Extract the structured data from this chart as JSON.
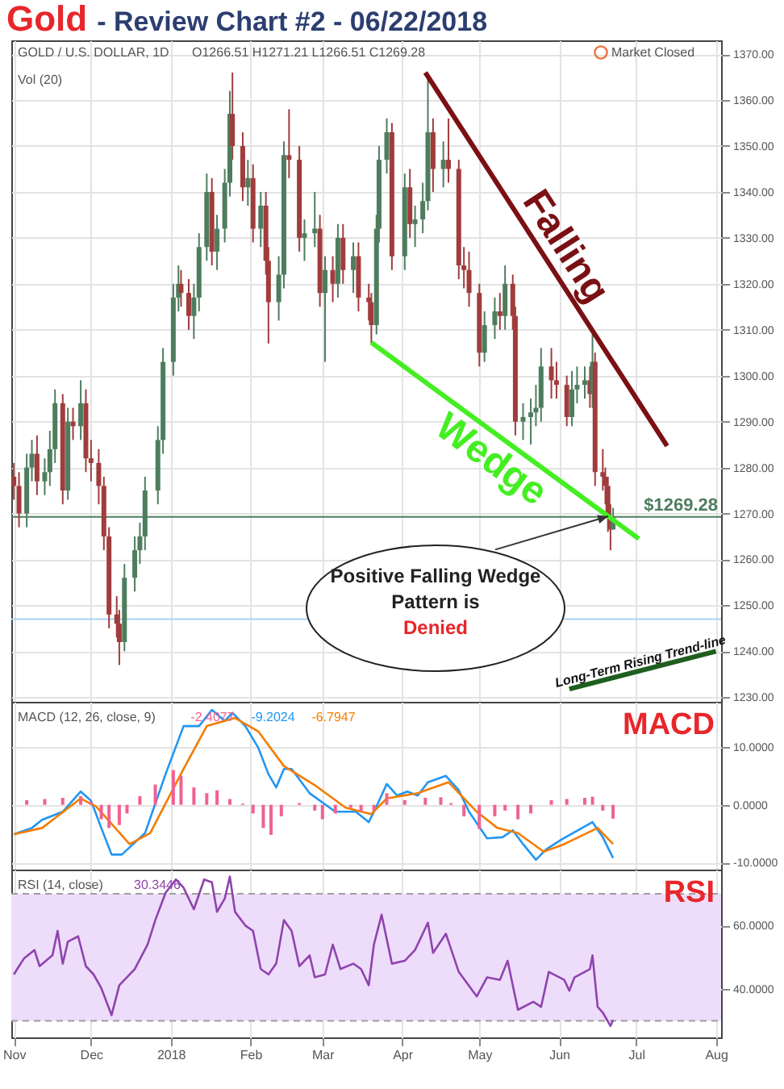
{
  "chart_data": [
    {
      "type": "candlestick",
      "title": "Gold",
      "subtitle": "- Review Chart #2 - 06/22/2018",
      "annotations": [
        "GOLD / U.S. DOLLAR, 1D",
        "O1266.51 H1271.21 L1266.51 C1269.28",
        "Vol (20)",
        "Market Closed",
        {
          "text": "Positive Falling Wedge Pattern is Denied",
          "x": "2018-06-22",
          "y": 1269.28
        }
      ],
      "x": [
        "2017-11-01",
        "2017-11-03",
        "2017-11-06",
        "2017-11-08",
        "2017-11-10",
        "2017-11-13",
        "2017-11-15",
        "2017-11-17",
        "2017-11-20",
        "2017-11-22",
        "2017-11-24",
        "2017-11-27",
        "2017-11-29",
        "2017-12-01",
        "2017-12-04",
        "2017-12-06",
        "2017-12-08",
        "2017-12-11",
        "2017-12-12",
        "2017-12-14",
        "2017-12-18",
        "2017-12-20",
        "2017-12-22",
        "2017-12-27",
        "2017-12-29",
        "2018-01-02",
        "2018-01-04",
        "2018-01-05",
        "2018-01-08",
        "2018-01-10",
        "2018-01-12",
        "2018-01-15",
        "2018-01-17",
        "2018-01-19",
        "2018-01-22",
        "2018-01-24",
        "2018-01-25",
        "2018-01-29",
        "2018-01-31",
        "2018-02-02",
        "2018-02-05",
        "2018-02-07",
        "2018-02-08",
        "2018-02-12",
        "2018-02-14",
        "2018-02-16",
        "2018-02-20",
        "2018-02-22",
        "2018-02-26",
        "2018-02-28",
        "2018-03-02",
        "2018-03-05",
        "2018-03-07",
        "2018-03-09",
        "2018-03-13",
        "2018-03-15",
        "2018-03-19",
        "2018-03-20",
        "2018-03-22",
        "2018-03-23",
        "2018-03-26",
        "2018-03-28",
        "2018-04-02",
        "2018-04-04",
        "2018-04-06",
        "2018-04-09",
        "2018-04-11",
        "2018-04-13",
        "2018-04-17",
        "2018-04-19",
        "2018-04-23",
        "2018-04-25",
        "2018-04-27",
        "2018-05-01",
        "2018-05-03",
        "2018-05-07",
        "2018-05-09",
        "2018-05-11",
        "2018-05-14",
        "2018-05-15",
        "2018-05-18",
        "2018-05-21",
        "2018-05-23",
        "2018-05-25",
        "2018-05-29",
        "2018-05-31",
        "2018-06-04",
        "2018-06-06",
        "2018-06-08",
        "2018-06-11",
        "2018-06-13",
        "2018-06-14",
        "2018-06-15",
        "2018-06-18",
        "2018-06-19",
        "2018-06-20",
        "2018-06-21",
        "2018-06-22"
      ],
      "ohlc": [
        [
          1278,
          1281,
          1273,
          1276
        ],
        [
          1276,
          1279,
          1267,
          1270
        ],
        [
          1270,
          1283,
          1267,
          1280
        ],
        [
          1280,
          1286,
          1277,
          1283
        ],
        [
          1283,
          1287,
          1274,
          1277
        ],
        [
          1277,
          1282,
          1274,
          1279
        ],
        [
          1279,
          1288,
          1276,
          1284
        ],
        [
          1284,
          1297,
          1281,
          1294
        ],
        [
          1294,
          1296,
          1272,
          1275
        ],
        [
          1275,
          1293,
          1273,
          1290
        ],
        [
          1290,
          1293,
          1286,
          1289
        ],
        [
          1289,
          1299,
          1286,
          1294
        ],
        [
          1294,
          1297,
          1279,
          1282
        ],
        [
          1282,
          1286,
          1277,
          1281
        ],
        [
          1281,
          1284,
          1272,
          1276
        ],
        [
          1276,
          1278,
          1262,
          1265
        ],
        [
          1265,
          1267,
          1245,
          1248
        ],
        [
          1248,
          1252,
          1243,
          1246
        ],
        [
          1246,
          1249,
          1237,
          1242
        ],
        [
          1242,
          1259,
          1240,
          1256
        ],
        [
          1256,
          1265,
          1253,
          1262
        ],
        [
          1262,
          1268,
          1259,
          1265
        ],
        [
          1265,
          1278,
          1262,
          1275
        ],
        [
          1275,
          1289,
          1272,
          1286
        ],
        [
          1286,
          1306,
          1283,
          1303
        ],
        [
          1303,
          1320,
          1300,
          1317
        ],
        [
          1317,
          1324,
          1314,
          1320
        ],
        [
          1320,
          1323,
          1315,
          1318
        ],
        [
          1318,
          1321,
          1310,
          1313
        ],
        [
          1313,
          1320,
          1308,
          1317
        ],
        [
          1317,
          1331,
          1314,
          1328
        ],
        [
          1328,
          1344,
          1325,
          1340
        ],
        [
          1340,
          1343,
          1324,
          1327
        ],
        [
          1327,
          1335,
          1323,
          1332
        ],
        [
          1332,
          1345,
          1329,
          1342
        ],
        [
          1342,
          1362,
          1339,
          1357
        ],
        [
          1357,
          1366,
          1347,
          1350
        ],
        [
          1350,
          1353,
          1338,
          1341
        ],
        [
          1341,
          1347,
          1337,
          1343
        ],
        [
          1343,
          1346,
          1329,
          1332
        ],
        [
          1332,
          1340,
          1328,
          1337
        ],
        [
          1337,
          1340,
          1322,
          1325
        ],
        [
          1325,
          1328,
          1307,
          1316
        ],
        [
          1316,
          1326,
          1312,
          1322
        ],
        [
          1322,
          1351,
          1319,
          1348
        ],
        [
          1348,
          1358,
          1343,
          1347
        ],
        [
          1347,
          1350,
          1327,
          1330
        ],
        [
          1330,
          1334,
          1325,
          1331
        ],
        [
          1331,
          1340,
          1328,
          1332
        ],
        [
          1332,
          1335,
          1315,
          1318
        ],
        [
          1318,
          1326,
          1303,
          1323
        ],
        [
          1323,
          1326,
          1316,
          1320
        ],
        [
          1320,
          1333,
          1317,
          1330
        ],
        [
          1330,
          1333,
          1320,
          1323
        ],
        [
          1323,
          1329,
          1318,
          1326
        ],
        [
          1326,
          1329,
          1314,
          1317
        ],
        [
          1317,
          1320,
          1312,
          1316
        ],
        [
          1316,
          1318,
          1307,
          1311
        ],
        [
          1311,
          1335,
          1309,
          1332
        ],
        [
          1332,
          1350,
          1329,
          1347
        ],
        [
          1347,
          1356,
          1344,
          1353
        ],
        [
          1353,
          1355,
          1323,
          1326
        ],
        [
          1326,
          1344,
          1323,
          1341
        ],
        [
          1341,
          1345,
          1330,
          1333
        ],
        [
          1333,
          1337,
          1328,
          1334
        ],
        [
          1334,
          1342,
          1331,
          1338
        ],
        [
          1338,
          1365,
          1336,
          1353
        ],
        [
          1353,
          1356,
          1340,
          1345
        ],
        [
          1345,
          1351,
          1341,
          1347
        ],
        [
          1347,
          1356,
          1342,
          1345
        ],
        [
          1345,
          1347,
          1321,
          1324
        ],
        [
          1324,
          1328,
          1319,
          1323
        ],
        [
          1323,
          1327,
          1315,
          1318
        ],
        [
          1318,
          1320,
          1302,
          1305
        ],
        [
          1305,
          1314,
          1303,
          1311
        ],
        [
          1311,
          1317,
          1308,
          1314
        ],
        [
          1314,
          1318,
          1310,
          1313
        ],
        [
          1313,
          1324,
          1310,
          1320
        ],
        [
          1320,
          1322,
          1310,
          1313
        ],
        [
          1313,
          1315,
          1287,
          1290
        ],
        [
          1290,
          1294,
          1286,
          1291
        ],
        [
          1291,
          1295,
          1285,
          1292
        ],
        [
          1292,
          1298,
          1289,
          1293
        ],
        [
          1293,
          1306,
          1290,
          1302
        ],
        [
          1302,
          1306,
          1295,
          1299
        ],
        [
          1299,
          1303,
          1295,
          1298
        ],
        [
          1298,
          1300,
          1289,
          1291
        ],
        [
          1291,
          1301,
          1289,
          1297
        ],
        [
          1297,
          1302,
          1294,
          1298
        ],
        [
          1298,
          1302,
          1295,
          1299
        ],
        [
          1299,
          1302,
          1293,
          1296
        ],
        [
          1296,
          1309,
          1293,
          1303
        ],
        [
          1303,
          1305,
          1276,
          1279
        ],
        [
          1279,
          1284,
          1275,
          1278
        ],
        [
          1278,
          1280,
          1272,
          1276
        ],
        [
          1276,
          1278,
          1266,
          1269
        ],
        [
          1269,
          1272,
          1262,
          1266.51
        ],
        [
          1266.51,
          1271.21,
          1266.51,
          1269.28
        ]
      ],
      "colors": [
        "#a13c3c",
        "#a13c3c",
        "#4e7d5e",
        "#4e7d5e",
        "#a13c3c",
        "#4e7d5e",
        "#4e7d5e",
        "#4e7d5e",
        "#a13c3c",
        "#4e7d5e",
        "#a13c3c",
        "#4e7d5e",
        "#a13c3c",
        "#a13c3c",
        "#a13c3c",
        "#a13c3c",
        "#a13c3c",
        "#a13c3c",
        "#a13c3c",
        "#4e7d5e",
        "#4e7d5e",
        "#4e7d5e",
        "#4e7d5e",
        "#4e7d5e",
        "#4e7d5e",
        "#4e7d5e",
        "#4e7d5e",
        "#a13c3c",
        "#a13c3c",
        "#4e7d5e",
        "#4e7d5e",
        "#4e7d5e",
        "#a13c3c",
        "#4e7d5e",
        "#4e7d5e",
        "#4e7d5e",
        "#a13c3c",
        "#a13c3c",
        "#4e7d5e",
        "#a13c3c",
        "#4e7d5e",
        "#a13c3c",
        "#a13c3c",
        "#4e7d5e",
        "#4e7d5e",
        "#a13c3c",
        "#a13c3c",
        "#4e7d5e",
        "#4e7d5e",
        "#a13c3c",
        "#4e7d5e",
        "#a13c3c",
        "#4e7d5e",
        "#a13c3c",
        "#4e7d5e",
        "#a13c3c",
        "#a13c3c",
        "#a13c3c",
        "#4e7d5e",
        "#4e7d5e",
        "#4e7d5e",
        "#a13c3c",
        "#4e7d5e",
        "#a13c3c",
        "#4e7d5e",
        "#4e7d5e",
        "#4e7d5e",
        "#a13c3c",
        "#4e7d5e",
        "#a13c3c",
        "#a13c3c",
        "#a13c3c",
        "#a13c3c",
        "#a13c3c",
        "#4e7d5e",
        "#4e7d5e",
        "#a13c3c",
        "#4e7d5e",
        "#a13c3c",
        "#a13c3c",
        "#4e7d5e",
        "#4e7d5e",
        "#4e7d5e",
        "#4e7d5e",
        "#a13c3c",
        "#a13c3c",
        "#a13c3c",
        "#4e7d5e",
        "#4e7d5e",
        "#4e7d5e",
        "#a13c3c",
        "#4e7d5e",
        "#a13c3c",
        "#a13c3c",
        "#a13c3c",
        "#a13c3c",
        "#a13c3c",
        "#4e7d5e"
      ],
      "series": [
        {
          "type": "line",
          "name": "Falling",
          "color": "#7b1014",
          "x": [
            "2018-04-10",
            "2018-07-13"
          ],
          "values": [
            1366,
            1284.7
          ]
        },
        {
          "type": "line",
          "name": "Wedge",
          "color": "#44ee22",
          "x": [
            "2018-03-20",
            "2018-07-02"
          ],
          "values": [
            1307.2,
            1264.5
          ]
        },
        {
          "type": "line",
          "name": "Long-Term Rising Trend-line",
          "color": "#1e5e1e",
          "x": [
            "2018-06-05",
            "2018-08-01"
          ],
          "values": [
            1231.8,
            1240
          ]
        }
      ],
      "ref_lines": [
        {
          "axis": "y",
          "value": 1269.28,
          "label": "$1269.28",
          "color": "#4e7d5e"
        },
        {
          "axis": "y",
          "value": 1247,
          "color": "#a8d4f0"
        }
      ],
      "xlim": [
        "2017-10-31",
        "2018-08-03"
      ],
      "xticks": [
        {
          "value": "2017-11-01",
          "label": null
        },
        {
          "value": "2017-12-01",
          "label": null
        },
        {
          "value": "2018-01-01",
          "label": null
        },
        {
          "value": "2018-02-01",
          "label": null
        },
        {
          "value": "2018-03-01",
          "label": null
        },
        {
          "value": "2018-04-01",
          "label": null
        },
        {
          "value": "2018-05-01",
          "label": null
        },
        {
          "value": "2018-06-01",
          "label": null
        },
        {
          "value": "2018-07-01",
          "label": null
        },
        {
          "value": "2018-08-01",
          "label": null
        }
      ],
      "ylim": [
        1229,
        1373
      ],
      "yticks": [
        {
          "value": 1230,
          "label": "1230.00"
        },
        {
          "value": 1240,
          "label": "1240.00"
        },
        {
          "value": 1250,
          "label": "1250.00"
        },
        {
          "value": 1260,
          "label": "1260.00"
        },
        {
          "value": 1270,
          "label": "1270.00"
        },
        {
          "value": 1280,
          "label": "1280.00"
        },
        {
          "value": 1290,
          "label": "1290.00"
        },
        {
          "value": 1300,
          "label": "1300.00"
        },
        {
          "value": 1310,
          "label": "1310.00"
        },
        {
          "value": 1320,
          "label": "1320.00"
        },
        {
          "value": 1330,
          "label": "1330.00"
        },
        {
          "value": 1340,
          "label": "1340.00"
        },
        {
          "value": 1350,
          "label": "1350.00"
        },
        {
          "value": 1360,
          "label": "1360.00"
        },
        {
          "value": 1370,
          "label": "1370.00"
        }
      ],
      "grid": true,
      "tick_labels": "y"
    },
    {
      "type": "line",
      "annotations": [
        "MACD (12, 26, close, 9)",
        "-2.4077",
        "-9.2024",
        "-6.7947",
        "MACD"
      ],
      "series": [
        {
          "type": "line",
          "color": "#2196f3",
          "x": [
            "2017-11-01",
            "2017-11-08",
            "2017-11-12",
            "2017-11-20",
            "2017-11-27",
            "2017-12-01",
            "2017-12-05",
            "2017-12-09",
            "2017-12-13",
            "2017-12-22",
            "2017-12-30",
            "2018-01-06",
            "2018-01-12",
            "2018-01-17",
            "2018-01-22",
            "2018-01-25",
            "2018-01-30",
            "2018-02-04",
            "2018-02-08",
            "2018-02-11",
            "2018-02-14",
            "2018-02-17",
            "2018-02-24",
            "2018-03-06",
            "2018-03-14",
            "2018-03-19",
            "2018-03-22",
            "2018-03-26",
            "2018-03-30",
            "2018-04-03",
            "2018-04-07",
            "2018-04-11",
            "2018-04-18",
            "2018-04-23",
            "2018-04-27",
            "2018-05-04",
            "2018-05-10",
            "2018-05-14",
            "2018-05-18",
            "2018-05-23",
            "2018-05-27",
            "2018-06-02",
            "2018-06-14",
            "2018-06-18",
            "2018-06-22"
          ],
          "values": [
            -5.1,
            -4.0,
            -2.6,
            -1.2,
            2.3,
            0.7,
            -4.0,
            -8.6,
            -8.6,
            -4.9,
            5.3,
            13.6,
            13.6,
            16.4,
            14.5,
            15.9,
            13.6,
            9.9,
            5.3,
            3.0,
            6.2,
            6.2,
            2.0,
            -1.2,
            -1.2,
            -3.0,
            -0.3,
            3.6,
            1.6,
            2.3,
            1.6,
            3.9,
            5.0,
            2.5,
            -1.2,
            -5.8,
            -5.6,
            -4.4,
            -6.8,
            -9.5,
            -7.7,
            -6.0,
            -3.0,
            -5.6,
            -9.2
          ]
        },
        {
          "type": "line",
          "color": "#f57c00",
          "x": [
            "2017-11-01",
            "2017-11-12",
            "2017-11-27",
            "2017-12-03",
            "2017-12-16",
            "2017-12-24",
            "2018-01-06",
            "2018-01-15",
            "2018-01-26",
            "2018-02-04",
            "2018-02-14",
            "2018-02-26",
            "2018-03-10",
            "2018-03-20",
            "2018-03-26",
            "2018-04-07",
            "2018-04-19",
            "2018-04-30",
            "2018-05-08",
            "2018-05-16",
            "2018-05-26",
            "2018-06-03",
            "2018-06-16",
            "2018-06-22"
          ],
          "values": [
            -5.1,
            -4.0,
            1.1,
            -0.3,
            -6.8,
            -4.9,
            6.2,
            13.6,
            15.0,
            12.7,
            6.7,
            3.4,
            -0.5,
            -1.6,
            1.1,
            2.0,
            3.9,
            -1.2,
            -4.0,
            -4.9,
            -8.1,
            -6.8,
            -4.0,
            -6.8
          ]
        },
        {
          "type": "bar",
          "color": "#f06292",
          "x": [
            "2017-11-06",
            "2017-11-13",
            "2017-11-20",
            "2017-11-27",
            "2017-12-01",
            "2017-12-05",
            "2017-12-08",
            "2017-12-12",
            "2017-12-15",
            "2017-12-20",
            "2017-12-26",
            "2018-01-02",
            "2018-01-05",
            "2018-01-10",
            "2018-01-15",
            "2018-01-19",
            "2018-01-24",
            "2018-01-29",
            "2018-02-02",
            "2018-02-06",
            "2018-02-09",
            "2018-02-13",
            "2018-02-20",
            "2018-02-26",
            "2018-03-01",
            "2018-03-06",
            "2018-03-12",
            "2018-03-16",
            "2018-03-21",
            "2018-03-26",
            "2018-04-02",
            "2018-04-10",
            "2018-04-16",
            "2018-04-20",
            "2018-04-25",
            "2018-05-01",
            "2018-05-07",
            "2018-05-11",
            "2018-05-16",
            "2018-05-21",
            "2018-05-29",
            "2018-06-04",
            "2018-06-11",
            "2018-06-14",
            "2018-06-18",
            "2018-06-22"
          ],
          "values": [
            0.8,
            1.0,
            1.2,
            1.5,
            0.5,
            -2.5,
            -4.0,
            -3.5,
            -1.5,
            1.5,
            3.5,
            6.0,
            5.0,
            3.0,
            2.0,
            2.5,
            1.0,
            0.2,
            -1.5,
            -4.0,
            -5.2,
            -2.0,
            0.3,
            -1.0,
            -2.5,
            -1.5,
            -0.5,
            -1.2,
            -1.0,
            2.0,
            0.8,
            1.2,
            1.3,
            0.3,
            -2.0,
            -4.2,
            -2.0,
            -1.0,
            -2.5,
            -1.5,
            0.8,
            1.0,
            1.2,
            1.4,
            -1.0,
            -2.4
          ]
        }
      ],
      "xlim": [
        "2017-10-31",
        "2018-08-03"
      ],
      "xticks": [
        {
          "value": "2017-11-01",
          "label": null
        },
        {
          "value": "2017-12-01",
          "label": null
        },
        {
          "value": "2018-01-01",
          "label": null
        },
        {
          "value": "2018-02-01",
          "label": null
        },
        {
          "value": "2018-03-01",
          "label": null
        },
        {
          "value": "2018-04-01",
          "label": null
        },
        {
          "value": "2018-05-01",
          "label": null
        },
        {
          "value": "2018-06-01",
          "label": null
        },
        {
          "value": "2018-07-01",
          "label": null
        },
        {
          "value": "2018-08-01",
          "label": null
        }
      ],
      "ylim": [
        -11.2,
        17.8
      ],
      "yticks": [
        {
          "value": -10,
          "label": "-10.0000"
        },
        {
          "value": 0,
          "label": "0.0000"
        },
        {
          "value": 10,
          "label": "10.0000"
        }
      ],
      "grid": true,
      "tick_labels": "y"
    },
    {
      "type": "line",
      "annotations": [
        "RSI (14, close)",
        "30.3446",
        "RSI"
      ],
      "series": [
        {
          "type": "line",
          "color": "#8e44ad",
          "x": [
            "2017-11-01",
            "2017-11-03",
            "2017-11-05",
            "2017-11-09",
            "2017-11-11",
            "2017-11-16",
            "2017-11-18",
            "2017-11-20",
            "2017-11-22",
            "2017-11-26",
            "2017-11-29",
            "2017-12-02",
            "2017-12-05",
            "2017-12-09",
            "2017-12-12",
            "2017-12-18",
            "2017-12-23",
            "2017-12-26",
            "2017-12-30",
            "2018-01-03",
            "2018-01-06",
            "2018-01-10",
            "2018-01-14",
            "2018-01-17",
            "2018-01-19",
            "2018-01-22",
            "2018-01-24",
            "2018-01-26",
            "2018-01-30",
            "2018-02-02",
            "2018-02-05",
            "2018-02-08",
            "2018-02-11",
            "2018-02-14",
            "2018-02-17",
            "2018-02-20",
            "2018-02-24",
            "2018-02-26",
            "2018-03-02",
            "2018-03-05",
            "2018-03-08",
            "2018-03-13",
            "2018-03-16",
            "2018-03-19",
            "2018-03-21",
            "2018-03-24",
            "2018-03-28",
            "2018-04-02",
            "2018-04-06",
            "2018-04-11",
            "2018-04-13",
            "2018-04-18",
            "2018-04-23",
            "2018-04-30",
            "2018-05-04",
            "2018-05-09",
            "2018-05-12",
            "2018-05-16",
            "2018-05-22",
            "2018-05-25",
            "2018-05-28",
            "2018-06-03",
            "2018-06-05",
            "2018-06-07",
            "2018-06-13",
            "2018-06-14",
            "2018-06-16",
            "2018-06-18",
            "2018-06-21",
            "2018-06-22"
          ],
          "values": [
            44.6,
            47.2,
            49.7,
            52.3,
            47.2,
            50.6,
            58.3,
            48.0,
            54.9,
            56.6,
            47.2,
            44.6,
            40.3,
            31.8,
            41.2,
            46.3,
            54.0,
            61.7,
            70.3,
            74.5,
            71.9,
            65.1,
            74.5,
            73.6,
            64.3,
            68.5,
            75.4,
            64.3,
            60.0,
            58.3,
            46.3,
            44.6,
            48.0,
            61.7,
            58.3,
            47.2,
            50.6,
            43.7,
            44.6,
            54.0,
            46.3,
            48.0,
            46.3,
            41.2,
            54.0,
            63.4,
            48.0,
            48.9,
            52.3,
            60.9,
            51.4,
            57.4,
            45.4,
            37.7,
            43.7,
            42.9,
            48.9,
            33.5,
            36.0,
            34.4,
            45.4,
            42.9,
            39.5,
            43.7,
            46.3,
            50.6,
            34.4,
            32.6,
            28.4,
            30.3
          ]
        }
      ],
      "bands": [
        {
          "axis": "y",
          "from": 30,
          "to": 70,
          "color": "#eedcfb"
        }
      ],
      "ref_lines": [
        {
          "axis": "y",
          "value": 70,
          "color": "#9e9e9e",
          "line_style": "dashed"
        },
        {
          "axis": "y",
          "value": 30,
          "color": "#9e9e9e",
          "line_style": "dashed"
        }
      ],
      "xlim": [
        "2017-10-31",
        "2018-08-03"
      ],
      "xticks": [
        {
          "value": "2017-11-01",
          "label": "Nov"
        },
        {
          "value": "2017-12-01",
          "label": "Dec"
        },
        {
          "value": "2018-01-01",
          "label": "2018"
        },
        {
          "value": "2018-02-01",
          "label": "Feb"
        },
        {
          "value": "2018-03-01",
          "label": "Mar"
        },
        {
          "value": "2018-04-01",
          "label": "Apr"
        },
        {
          "value": "2018-05-01",
          "label": "May"
        },
        {
          "value": "2018-06-01",
          "label": "Jun"
        },
        {
          "value": "2018-07-01",
          "label": "Jul"
        },
        {
          "value": "2018-08-01",
          "label": "Aug"
        }
      ],
      "ylim": [
        24.8,
        77.6
      ],
      "yticks": [
        {
          "value": 40,
          "label": "40.0000"
        },
        {
          "value": 60,
          "label": "60.0000"
        }
      ],
      "grid": true
    }
  ]
}
